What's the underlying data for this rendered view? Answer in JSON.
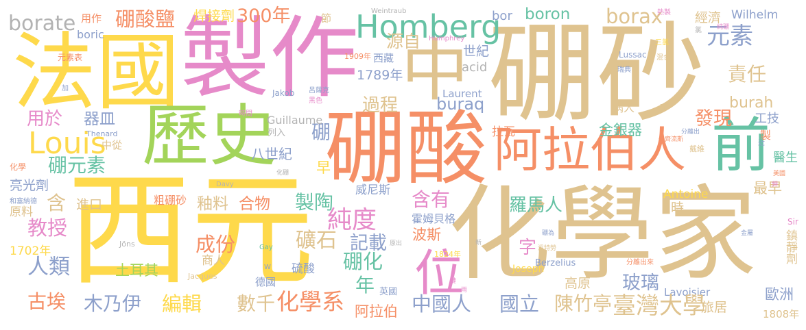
{
  "colors": {
    "yellow": "#fed94b",
    "tan": "#dfc38f",
    "pink": "#e68ac9",
    "orange": "#f58f66",
    "green": "#a3d45a",
    "teal": "#66c2a4",
    "blue": "#8da0cb",
    "gray": "#b3b3b3"
  },
  "words": [
    {
      "text": "西元",
      "color": "yellow"
    },
    {
      "text": "化學家",
      "color": "tan"
    },
    {
      "text": "硼砂",
      "color": "tan"
    },
    {
      "text": "製作",
      "color": "pink"
    },
    {
      "text": "法國",
      "color": "yellow"
    },
    {
      "text": "硼酸",
      "color": "orange"
    },
    {
      "text": "歷史",
      "color": "green"
    },
    {
      "text": "中",
      "color": "tan"
    },
    {
      "text": "阿拉伯人",
      "color": "orange"
    },
    {
      "text": "前",
      "color": "teal"
    },
    {
      "text": "位",
      "color": "pink"
    },
    {
      "text": "Homberg",
      "color": "teal"
    },
    {
      "text": "Louis",
      "color": "yellow"
    },
    {
      "text": "硼酸鹽",
      "color": "orange"
    },
    {
      "text": "300年",
      "color": "orange"
    },
    {
      "text": "borate",
      "color": "gray"
    },
    {
      "text": "用作",
      "color": "orange"
    },
    {
      "text": "焊接劑",
      "color": "yellow"
    },
    {
      "text": "boric",
      "color": "blue"
    },
    {
      "text": "元素表",
      "color": "orange"
    },
    {
      "text": "boron",
      "color": "teal"
    },
    {
      "text": "borax",
      "color": "tan"
    },
    {
      "text": "bor",
      "color": "blue"
    },
    {
      "text": "元素",
      "color": "blue"
    },
    {
      "text": "源自",
      "color": "tan"
    },
    {
      "text": "世紀",
      "color": "blue"
    },
    {
      "text": "西藏",
      "color": "blue"
    },
    {
      "text": "1909年",
      "color": "orange"
    },
    {
      "text": "責任",
      "color": "tan"
    },
    {
      "text": "經濟",
      "color": "tan"
    },
    {
      "text": "Wilhelm",
      "color": "blue"
    },
    {
      "text": "節",
      "color": "tan"
    },
    {
      "text": "Weintraub",
      "color": "gray"
    },
    {
      "text": "熱製",
      "color": "pink"
    },
    {
      "text": "Humphrey",
      "color": "pink"
    },
    {
      "text": "acid",
      "color": "gray"
    },
    {
      "text": "1789年",
      "color": "blue"
    },
    {
      "text": "過程",
      "color": "tan"
    },
    {
      "text": "Laurent",
      "color": "blue"
    },
    {
      "text": "buraq",
      "color": "blue"
    },
    {
      "text": "burah",
      "color": "tan"
    },
    {
      "text": "發現",
      "color": "orange"
    },
    {
      "text": "工技",
      "color": "blue"
    },
    {
      "text": "醫生",
      "color": "teal"
    },
    {
      "text": "病人",
      "color": "tan"
    },
    {
      "text": "用於",
      "color": "pink"
    },
    {
      "text": "器皿",
      "color": "blue"
    },
    {
      "text": "中從",
      "color": "tan"
    },
    {
      "text": "Thenard",
      "color": "blue"
    },
    {
      "text": "硼",
      "color": "blue"
    },
    {
      "text": "早",
      "color": "yellow"
    },
    {
      "text": "八世紀",
      "color": "blue"
    },
    {
      "text": "Guillaume",
      "color": "gray"
    },
    {
      "text": "列入",
      "color": "gray"
    },
    {
      "text": "拉瓦",
      "color": "orange"
    },
    {
      "text": "金銀器",
      "color": "teal"
    },
    {
      "text": "硼元素",
      "color": "teal"
    },
    {
      "text": "化學",
      "color": "orange"
    },
    {
      "text": "和塞納德",
      "color": "blue"
    },
    {
      "text": "亮光劑",
      "color": "blue"
    },
    {
      "text": "含",
      "color": "tan"
    },
    {
      "text": "進口",
      "color": "tan"
    },
    {
      "text": "粗硼砂",
      "color": "orange"
    },
    {
      "text": "釉料",
      "color": "tan"
    },
    {
      "text": "合物",
      "color": "orange"
    },
    {
      "text": "製陶",
      "color": "teal"
    },
    {
      "text": "威尼斯",
      "color": "blue"
    },
    {
      "text": "含有",
      "color": "pink"
    },
    {
      "text": "最早",
      "color": "tan"
    },
    {
      "text": "羅馬人",
      "color": "teal"
    },
    {
      "text": "時",
      "color": "tan"
    },
    {
      "text": "Antoine",
      "color": "yellow"
    },
    {
      "text": "原料",
      "color": "tan"
    },
    {
      "text": "教授",
      "color": "pink"
    },
    {
      "text": "純度",
      "color": "pink"
    },
    {
      "text": "霍姆貝格",
      "color": "blue"
    },
    {
      "text": "成份",
      "color": "orange"
    },
    {
      "text": "礦石",
      "color": "tan"
    },
    {
      "text": "記載",
      "color": "blue"
    },
    {
      "text": "波斯",
      "color": "orange"
    },
    {
      "text": "字",
      "color": "pink"
    },
    {
      "text": "1702年",
      "color": "yellow"
    },
    {
      "text": "人類",
      "color": "blue"
    },
    {
      "text": "商人",
      "color": "tan"
    },
    {
      "text": "土耳其",
      "color": "green"
    },
    {
      "text": "硼化",
      "color": "teal"
    },
    {
      "text": "硫酸",
      "color": "blue"
    },
    {
      "text": "年",
      "color": "teal"
    },
    {
      "text": "英國",
      "color": "blue"
    },
    {
      "text": "1824年",
      "color": "yellow"
    },
    {
      "text": "Joseph",
      "color": "yellow"
    },
    {
      "text": "Berzelius",
      "color": "blue"
    },
    {
      "text": "高原",
      "color": "tan"
    },
    {
      "text": "玻璃",
      "color": "blue"
    },
    {
      "text": "Lavoisier",
      "color": "blue"
    },
    {
      "text": "歐洲",
      "color": "blue"
    },
    {
      "text": "鎮靜劑",
      "color": "tan"
    },
    {
      "text": "Sir",
      "color": "pink"
    },
    {
      "text": "古埃",
      "color": "orange"
    },
    {
      "text": "木乃伊",
      "color": "blue"
    },
    {
      "text": "編輯",
      "color": "yellow"
    },
    {
      "text": "數千",
      "color": "tan"
    },
    {
      "text": "化學系",
      "color": "orange"
    },
    {
      "text": "中國人",
      "color": "blue"
    },
    {
      "text": "德國",
      "color": "blue"
    },
    {
      "text": "阿拉伯",
      "color": "orange"
    },
    {
      "text": "國立",
      "color": "blue"
    },
    {
      "text": "陳竹亭",
      "color": "tan"
    },
    {
      "text": "臺灣大學",
      "color": "tan"
    },
    {
      "text": "旅居",
      "color": "tan"
    },
    {
      "text": "1808年",
      "color": "tan"
    },
    {
      "text": "Lussac",
      "color": "blue"
    },
    {
      "text": "瑞典",
      "color": "blue"
    },
    {
      "text": "混合",
      "color": "tan"
    },
    {
      "text": "三氯",
      "color": "yellow"
    },
    {
      "text": "純硼",
      "color": "pink"
    },
    {
      "text": "氯",
      "color": "gray"
    },
    {
      "text": "高",
      "color": "tan"
    },
    {
      "text": "Jakob",
      "color": "blue"
    },
    {
      "text": "呂薩克",
      "color": "blue"
    },
    {
      "text": "黑色",
      "color": "pink"
    },
    {
      "text": "加",
      "color": "blue"
    },
    {
      "text": "時間",
      "color": "pink"
    },
    {
      "text": "Davy",
      "color": "gray"
    },
    {
      "text": "化硼",
      "color": "gray"
    },
    {
      "text": "Jöns",
      "color": "gray"
    },
    {
      "text": "Gay",
      "color": "teal"
    },
    {
      "text": "W",
      "color": "blue"
    },
    {
      "text": "Jacques",
      "color": "tan"
    },
    {
      "text": "原出",
      "color": "gray"
    },
    {
      "text": "新",
      "color": "gray"
    },
    {
      "text": "硼為",
      "color": "blue"
    },
    {
      "text": "溫特勞",
      "color": "tan"
    },
    {
      "text": "金屬",
      "color": "blue"
    },
    {
      "text": "分離出來",
      "color": "orange"
    },
    {
      "text": "分離出",
      "color": "blue"
    },
    {
      "text": "伯齊流斯",
      "color": "orange"
    },
    {
      "text": "戴維",
      "color": "tan"
    },
    {
      "text": "近",
      "color": "blue"
    },
    {
      "text": "美國",
      "color": "orange"
    },
    {
      "text": "鉀",
      "color": "pink"
    },
    {
      "text": "雨",
      "color": "pink"
    },
    {
      "text": "鏈",
      "color": "pink"
    },
    {
      "text": "製",
      "color": "orange"
    }
  ]
}
